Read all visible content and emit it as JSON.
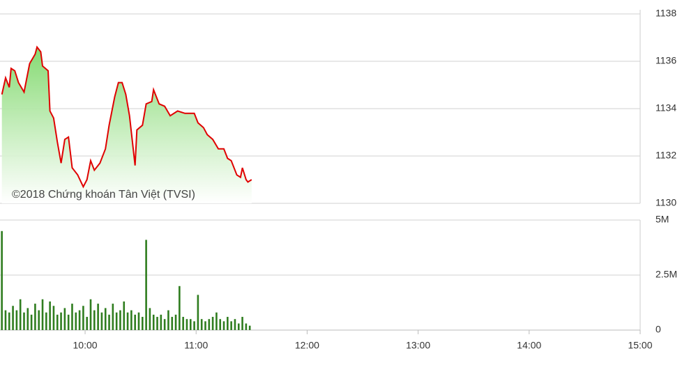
{
  "chart_data": [
    {
      "type": "area",
      "annotation": "©2018 Chứng khoán Tân Việt (TVSI)",
      "xlim": [
        554,
        900
      ],
      "x": [
        555,
        557,
        559,
        560,
        562,
        564,
        567,
        570,
        573,
        574,
        576,
        577,
        580,
        581,
        583,
        585,
        587,
        589,
        591,
        593,
        596,
        599,
        601,
        603,
        605,
        608,
        611,
        613,
        616,
        618,
        620,
        622,
        624,
        627,
        628,
        631,
        633,
        636,
        637,
        640,
        643,
        646,
        650,
        654,
        659,
        661,
        664,
        666,
        669,
        672,
        675,
        677,
        679,
        682,
        684,
        685,
        687,
        688,
        690
      ],
      "values": [
        1134.6,
        1135.3,
        1134.9,
        1135.7,
        1135.6,
        1135.1,
        1134.7,
        1135.9,
        1136.3,
        1136.6,
        1136.4,
        1135.8,
        1135.6,
        1133.9,
        1133.6,
        1132.6,
        1131.7,
        1132.7,
        1132.8,
        1131.5,
        1131.2,
        1130.7,
        1131.0,
        1131.8,
        1131.4,
        1131.7,
        1132.3,
        1133.3,
        1134.5,
        1135.1,
        1135.1,
        1134.6,
        1133.7,
        1131.6,
        1133.1,
        1133.3,
        1134.2,
        1134.3,
        1134.8,
        1134.2,
        1134.1,
        1133.7,
        1133.9,
        1133.8,
        1133.8,
        1133.4,
        1133.2,
        1132.9,
        1132.7,
        1132.3,
        1132.3,
        1131.9,
        1131.8,
        1131.2,
        1131.1,
        1131.5,
        1131.0,
        1130.9,
        1131.0
      ],
      "color": "#e00000",
      "ylim": [
        1130,
        1138
      ],
      "yticks": [
        1130,
        1132,
        1134,
        1136,
        1138
      ],
      "grid": true
    },
    {
      "type": "bar",
      "xlim": [
        554,
        900
      ],
      "x": [
        555,
        557,
        559,
        561,
        563,
        565,
        567,
        569,
        571,
        573,
        575,
        577,
        579,
        581,
        583,
        585,
        587,
        589,
        591,
        593,
        595,
        597,
        599,
        601,
        603,
        605,
        607,
        609,
        611,
        613,
        615,
        617,
        619,
        621,
        623,
        625,
        627,
        629,
        631,
        633,
        635,
        637,
        639,
        641,
        643,
        645,
        647,
        649,
        651,
        653,
        655,
        657,
        659,
        661,
        663,
        665,
        667,
        669,
        671,
        673,
        675,
        677,
        679,
        681,
        683,
        685,
        687,
        689
      ],
      "values": [
        4.5,
        0.9,
        0.8,
        1.1,
        0.9,
        1.4,
        0.8,
        1.0,
        0.7,
        1.2,
        0.9,
        1.4,
        0.8,
        1.3,
        1.1,
        0.7,
        0.8,
        1.0,
        0.7,
        1.2,
        0.8,
        0.9,
        1.1,
        0.6,
        1.4,
        0.9,
        1.2,
        0.8,
        1.0,
        0.7,
        1.2,
        0.8,
        0.9,
        1.3,
        0.8,
        0.9,
        0.7,
        0.8,
        0.6,
        4.1,
        1.0,
        0.7,
        0.6,
        0.7,
        0.5,
        0.9,
        0.6,
        0.7,
        2.0,
        0.6,
        0.5,
        0.5,
        0.4,
        1.6,
        0.5,
        0.4,
        0.5,
        0.6,
        0.8,
        0.5,
        0.4,
        0.6,
        0.4,
        0.5,
        0.3,
        0.6,
        0.3,
        0.2
      ],
      "color": "#2f7d1f",
      "ylim": [
        0,
        5
      ],
      "yticks": [
        0,
        {
          "value": 2.5,
          "label": "2.5M"
        },
        {
          "value": 5,
          "label": "5M"
        }
      ],
      "xticks": [
        {
          "value": 600,
          "label": "10:00"
        },
        {
          "value": 660,
          "label": "11:00"
        },
        {
          "value": 720,
          "label": "12:00"
        },
        {
          "value": 780,
          "label": "13:00"
        },
        {
          "value": 840,
          "label": "14:00"
        },
        {
          "value": 900,
          "label": "15:00"
        }
      ],
      "grid": true
    }
  ]
}
